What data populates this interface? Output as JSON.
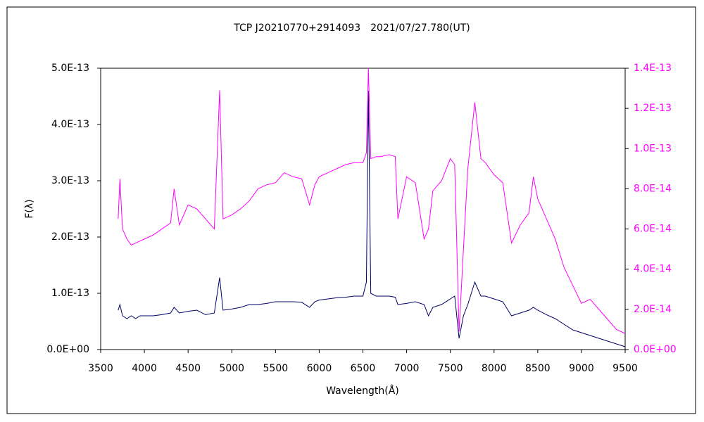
{
  "chart_data": {
    "type": "line",
    "title": "TCP J20210770+2914093　2021/07/27.780(UT)",
    "xlabel": "Wavelength(Å)",
    "ylabel": "F(λ)",
    "xlim": [
      3500,
      9500
    ],
    "xticks": [
      3500,
      4000,
      4500,
      5000,
      5500,
      6000,
      6500,
      7000,
      7500,
      8000,
      8500,
      9000,
      9500
    ],
    "ylim": [
      0,
      5e-13
    ],
    "yticks": [
      {
        "value": 0,
        "label": "0.0E+00"
      },
      {
        "value": 1e-13,
        "label": "1.0E-13"
      },
      {
        "value": 2e-13,
        "label": "2.0E-13"
      },
      {
        "value": 3e-13,
        "label": "3.0E-13"
      },
      {
        "value": 4e-13,
        "label": "4.0E-13"
      },
      {
        "value": 5e-13,
        "label": "5.0E-13"
      }
    ],
    "y2lim": [
      0,
      1.4e-13
    ],
    "y2ticks": [
      {
        "value": 0,
        "label": "0.0E+00"
      },
      {
        "value": 2e-14,
        "label": "2.0E-14"
      },
      {
        "value": 4e-14,
        "label": "4.0E-14"
      },
      {
        "value": 6e-14,
        "label": "6.0E-14"
      },
      {
        "value": 8e-14,
        "label": "8.0E-14"
      },
      {
        "value": 1e-13,
        "label": "1.0E-13"
      },
      {
        "value": 1.2e-13,
        "label": "1.2E-13"
      },
      {
        "value": 1.4e-13,
        "label": "1.4E-13"
      }
    ],
    "y2color": "#ff00ff",
    "x": [
      3700,
      3720,
      3750,
      3800,
      3850,
      3900,
      3950,
      4000,
      4100,
      4200,
      4300,
      4340,
      4400,
      4500,
      4600,
      4700,
      4800,
      4861,
      4900,
      5000,
      5100,
      5200,
      5300,
      5400,
      5500,
      5600,
      5700,
      5800,
      5890,
      5950,
      6000,
      6100,
      6200,
      6300,
      6400,
      6500,
      6540,
      6563,
      6590,
      6650,
      6700,
      6800,
      6870,
      6900,
      7000,
      7100,
      7200,
      7250,
      7300,
      7400,
      7500,
      7550,
      7600,
      7650,
      7700,
      7780,
      7850,
      7900,
      8000,
      8100,
      8200,
      8300,
      8400,
      8450,
      8500,
      8600,
      8700,
      8800,
      8900,
      9000,
      9100,
      9200,
      9300,
      9400,
      9500
    ],
    "series": [
      {
        "color": "#000066",
        "axis": "y",
        "values": [
          7e-14,
          8e-14,
          6e-14,
          5.5e-14,
          6e-14,
          5.5e-14,
          6e-14,
          6e-14,
          6e-14,
          6.2e-14,
          6.5e-14,
          7.5e-14,
          6.5e-14,
          6.8e-14,
          7e-14,
          6.2e-14,
          6.5e-14,
          1.28e-13,
          7e-14,
          7.2e-14,
          7.5e-14,
          8e-14,
          8e-14,
          8.2e-14,
          8.5e-14,
          8.5e-14,
          8.5e-14,
          8.4e-14,
          7.5e-14,
          8.5e-14,
          8.8e-14,
          9e-14,
          9.2e-14,
          9.3e-14,
          9.5e-14,
          9.5e-14,
          1.2e-13,
          4.6e-13,
          1e-13,
          9.5e-14,
          9.5e-14,
          9.5e-14,
          9.3e-14,
          8e-14,
          8.2e-14,
          8.5e-14,
          8e-14,
          6e-14,
          7.5e-14,
          8e-14,
          9e-14,
          9.5e-14,
          2e-14,
          6e-14,
          8e-14,
          1.2e-13,
          9.5e-14,
          9.5e-14,
          9e-14,
          8.5e-14,
          6e-14,
          6.5e-14,
          7e-14,
          7.5e-14,
          7e-14,
          6.2e-14,
          5.5e-14,
          4.5e-14,
          3.5e-14,
          3e-14,
          2.5e-14,
          2e-14,
          1.5e-14,
          1e-14,
          5e-15
        ]
      },
      {
        "color": "#ff00ff",
        "axis": "y2",
        "values": [
          6.5e-14,
          8.5e-14,
          6e-14,
          5.5e-14,
          5.2e-14,
          5.3e-14,
          5.4e-14,
          5.5e-14,
          5.7e-14,
          6e-14,
          6.3e-14,
          8e-14,
          6.2e-14,
          7.2e-14,
          7e-14,
          6.5e-14,
          6e-14,
          1.29e-13,
          6.5e-14,
          6.7e-14,
          7e-14,
          7.4e-14,
          8e-14,
          8.2e-14,
          8.3e-14,
          8.8e-14,
          8.6e-14,
          8.5e-14,
          7.2e-14,
          8.2e-14,
          8.6e-14,
          8.8e-14,
          9e-14,
          9.2e-14,
          9.3e-14,
          9.3e-14,
          9.8e-14,
          1.4e-13,
          9.5e-14,
          9.6e-14,
          9.6e-14,
          9.7e-14,
          9.6e-14,
          6.5e-14,
          8.6e-14,
          8.3e-14,
          5.5e-14,
          6e-14,
          7.9e-14,
          8.4e-14,
          9.5e-14,
          9.2e-14,
          9e-15,
          5e-14,
          9e-14,
          1.23e-13,
          9.5e-14,
          9.3e-14,
          8.7e-14,
          8.3e-14,
          5.3e-14,
          6.2e-14,
          6.8e-14,
          8.6e-14,
          7.5e-14,
          6.5e-14,
          5.5e-14,
          4.1e-14,
          3.2e-14,
          2.3e-14,
          2.5e-14,
          2e-14,
          1.5e-14,
          1e-14,
          8e-15
        ]
      }
    ]
  }
}
